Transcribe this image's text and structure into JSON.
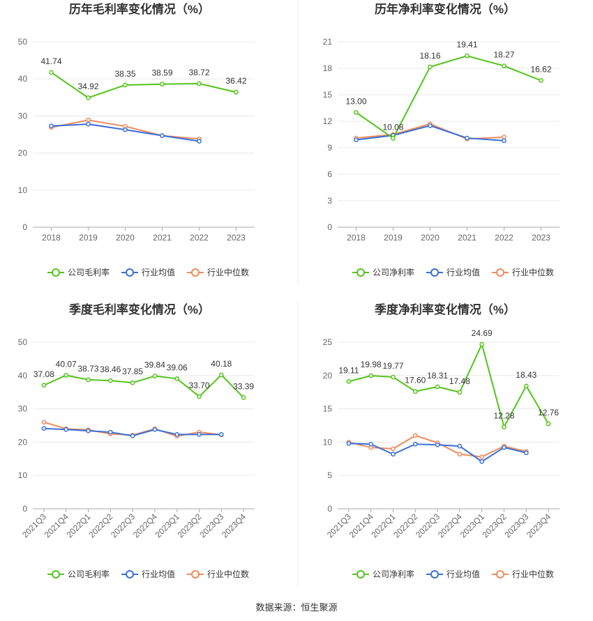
{
  "source": "数据来源：恒生聚源",
  "colors": {
    "company": "#52c41a",
    "avg": "#3a6fd8",
    "median": "#f08a5d"
  },
  "chart_data": [
    {
      "type": "line",
      "title": "历年毛利率变化情况（%）",
      "categories": [
        "2018",
        "2019",
        "2020",
        "2021",
        "2022",
        "2023"
      ],
      "yticks": [
        0,
        10,
        20,
        30,
        40,
        50
      ],
      "ylim": [
        0,
        50
      ],
      "rotate_ticks": false,
      "series": [
        {
          "name": "公司毛利率",
          "key": "company",
          "values": [
            41.74,
            34.92,
            38.35,
            38.59,
            38.72,
            36.42
          ],
          "labels": true
        },
        {
          "name": "行业均值",
          "key": "avg",
          "values": [
            27.3,
            27.8,
            26.3,
            24.7,
            23.2,
            null
          ]
        },
        {
          "name": "行业中位数",
          "key": "median",
          "values": [
            26.9,
            28.9,
            27.2,
            24.7,
            23.8,
            null
          ]
        }
      ],
      "value_labels": [
        "41.74",
        "34.92",
        "38.35",
        "38.59",
        "38.72",
        "36.42"
      ]
    },
    {
      "type": "line",
      "title": "历年净利率变化情况（%）",
      "categories": [
        "2018",
        "2019",
        "2020",
        "2021",
        "2022",
        "2023"
      ],
      "yticks": [
        0,
        3,
        6,
        9,
        12,
        15,
        18,
        21
      ],
      "ylim": [
        0,
        21
      ],
      "rotate_ticks": false,
      "series": [
        {
          "name": "公司净利率",
          "key": "company",
          "values": [
            13.0,
            10.08,
            18.16,
            19.41,
            18.27,
            16.62
          ],
          "labels": true
        },
        {
          "name": "行业均值",
          "key": "avg",
          "values": [
            9.9,
            10.4,
            11.5,
            10.1,
            9.8,
            null
          ]
        },
        {
          "name": "行业中位数",
          "key": "median",
          "values": [
            10.1,
            10.5,
            11.7,
            10.0,
            10.2,
            null
          ]
        }
      ],
      "value_labels": [
        "13.00",
        "10.08",
        "18.16",
        "19.41",
        "18.27",
        "16.62"
      ]
    },
    {
      "type": "line",
      "title": "季度毛利率变化情况（%）",
      "categories": [
        "2021Q3",
        "2021Q4",
        "2022Q1",
        "2022Q2",
        "2022Q3",
        "2022Q4",
        "2023Q1",
        "2023Q2",
        "2023Q3",
        "2023Q4"
      ],
      "yticks": [
        0,
        10,
        20,
        30,
        40,
        50
      ],
      "ylim": [
        0,
        50
      ],
      "rotate_ticks": true,
      "series": [
        {
          "name": "公司毛利率",
          "key": "company",
          "values": [
            37.08,
            40.07,
            38.73,
            38.46,
            37.85,
            39.84,
            39.06,
            33.7,
            40.18,
            33.39
          ],
          "labels": true
        },
        {
          "name": "行业均值",
          "key": "avg",
          "values": [
            24.1,
            23.8,
            23.4,
            23.0,
            21.9,
            23.8,
            22.3,
            22.3,
            22.3,
            null
          ]
        },
        {
          "name": "行业中位数",
          "key": "median",
          "values": [
            26.0,
            24.0,
            23.7,
            22.5,
            22.1,
            24.0,
            21.8,
            23.0,
            22.2,
            null
          ]
        }
      ],
      "value_labels": [
        "37.08",
        "40.07",
        "38.73",
        "38.46",
        "37.85",
        "39.84",
        "39.06",
        "33.70",
        "40.18",
        "33.39"
      ]
    },
    {
      "type": "line",
      "title": "季度净利率变化情况（%）",
      "categories": [
        "2021Q3",
        "2021Q4",
        "2022Q1",
        "2022Q2",
        "2022Q3",
        "2022Q4",
        "2023Q1",
        "2023Q2",
        "2023Q3",
        "2023Q4"
      ],
      "yticks": [
        0,
        5,
        10,
        15,
        20,
        25
      ],
      "ylim": [
        0,
        25
      ],
      "rotate_ticks": true,
      "series": [
        {
          "name": "公司净利率",
          "key": "company",
          "values": [
            19.11,
            19.98,
            19.77,
            17.6,
            18.31,
            17.48,
            24.69,
            12.28,
            18.43,
            12.76
          ],
          "labels": true
        },
        {
          "name": "行业均值",
          "key": "avg",
          "values": [
            9.8,
            9.7,
            8.2,
            9.7,
            9.6,
            9.4,
            7.1,
            9.2,
            8.4,
            null
          ]
        },
        {
          "name": "行业中位数",
          "key": "median",
          "values": [
            10.0,
            9.2,
            9.0,
            11.0,
            9.9,
            8.2,
            7.8,
            9.4,
            8.6,
            null
          ]
        }
      ],
      "value_labels": [
        "19.11",
        "19.98",
        "19.77",
        "17.60",
        "18.31",
        "17.48",
        "24.69",
        "12.28",
        "18.43",
        "12.76"
      ]
    }
  ]
}
